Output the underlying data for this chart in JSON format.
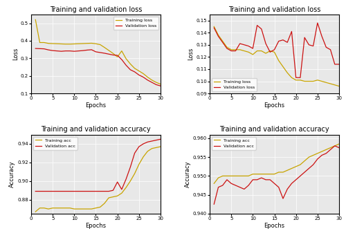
{
  "title_loss": "Training and validation loss",
  "title_acc": "Training and validation accuracy",
  "xlabel": "Epochs",
  "ylabel_loss": "Loss",
  "ylabel_acc": "Accuracy",
  "training_color": "#C8A400",
  "validation_color": "#CC1111",
  "plot1": {
    "train_loss": [
      0.52,
      0.39,
      0.39,
      0.385,
      0.384,
      0.383,
      0.382,
      0.381,
      0.381,
      0.382,
      0.383,
      0.384,
      0.385,
      0.386,
      0.383,
      0.378,
      0.362,
      0.345,
      0.328,
      0.308,
      0.342,
      0.298,
      0.268,
      0.243,
      0.228,
      0.213,
      0.193,
      0.176,
      0.163,
      0.153
    ],
    "val_loss": [
      0.356,
      0.355,
      0.354,
      0.348,
      0.344,
      0.342,
      0.34,
      0.342,
      0.342,
      0.34,
      0.342,
      0.344,
      0.347,
      0.349,
      0.337,
      0.333,
      0.329,
      0.324,
      0.319,
      0.317,
      0.293,
      0.261,
      0.235,
      0.223,
      0.205,
      0.193,
      0.176,
      0.163,
      0.15,
      0.143
    ]
  },
  "plot2": {
    "train_loss": [
      0.145,
      0.138,
      0.133,
      0.128,
      0.126,
      0.126,
      0.126,
      0.125,
      0.124,
      0.122,
      0.125,
      0.125,
      0.123,
      0.125,
      0.124,
      0.117,
      0.112,
      0.107,
      0.103,
      0.101,
      0.101,
      0.1,
      0.1,
      0.1,
      0.101,
      0.1,
      0.099,
      0.098,
      0.097,
      0.096
    ],
    "val_loss": [
      0.144,
      0.137,
      0.132,
      0.127,
      0.125,
      0.125,
      0.131,
      0.13,
      0.129,
      0.127,
      0.146,
      0.143,
      0.131,
      0.124,
      0.126,
      0.133,
      0.134,
      0.132,
      0.141,
      0.103,
      0.103,
      0.136,
      0.13,
      0.129,
      0.148,
      0.137,
      0.128,
      0.126,
      0.114,
      0.114
    ]
  },
  "plot3": {
    "train_acc": [
      0.867,
      0.871,
      0.871,
      0.87,
      0.871,
      0.871,
      0.871,
      0.871,
      0.871,
      0.87,
      0.87,
      0.87,
      0.87,
      0.87,
      0.871,
      0.872,
      0.876,
      0.882,
      0.883,
      0.884,
      0.887,
      0.893,
      0.9,
      0.908,
      0.918,
      0.926,
      0.932,
      0.935,
      0.936,
      0.937
    ],
    "val_acc": [
      0.889,
      0.889,
      0.889,
      0.889,
      0.889,
      0.889,
      0.889,
      0.889,
      0.889,
      0.889,
      0.889,
      0.889,
      0.889,
      0.889,
      0.889,
      0.889,
      0.889,
      0.889,
      0.89,
      0.899,
      0.891,
      0.902,
      0.915,
      0.93,
      0.937,
      0.94,
      0.942,
      0.943,
      0.944,
      0.945
    ]
  },
  "plot4": {
    "train_acc": [
      0.948,
      0.9495,
      0.95,
      0.95,
      0.95,
      0.95,
      0.95,
      0.95,
      0.95,
      0.9505,
      0.9505,
      0.9505,
      0.9505,
      0.9505,
      0.9505,
      0.951,
      0.951,
      0.9515,
      0.952,
      0.9525,
      0.953,
      0.954,
      0.955,
      0.9555,
      0.956,
      0.9565,
      0.957,
      0.9575,
      0.958,
      0.9585
    ],
    "val_acc": [
      0.9425,
      0.947,
      0.9475,
      0.949,
      0.948,
      0.9475,
      0.947,
      0.9465,
      0.9475,
      0.949,
      0.949,
      0.9495,
      0.949,
      0.949,
      0.948,
      0.947,
      0.944,
      0.9465,
      0.948,
      0.949,
      0.95,
      0.951,
      0.952,
      0.953,
      0.9545,
      0.9555,
      0.956,
      0.957,
      0.958,
      0.9575
    ]
  },
  "fig_width": 5.0,
  "fig_height": 3.47,
  "dpi": 100
}
